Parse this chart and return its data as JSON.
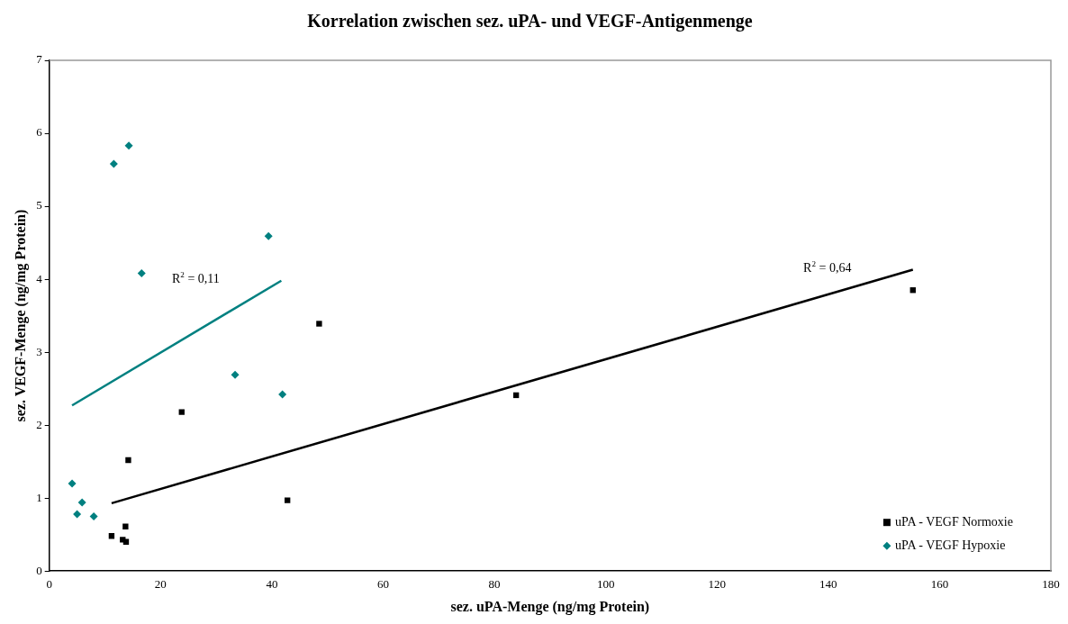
{
  "chart_data": {
    "type": "scatter",
    "title": "Korrelation zwischen sez. uPA- und VEGF-Antigenmenge",
    "xlabel": "sez. uPA-Menge (ng/mg Protein)",
    "ylabel": "sez. VEGF-Menge (ng/mg Protein)",
    "xlim": [
      0,
      180
    ],
    "xticks": [
      0,
      20,
      40,
      60,
      80,
      100,
      120,
      140,
      160,
      180
    ],
    "ylim": [
      0,
      7
    ],
    "yticks": [
      0,
      1,
      2,
      3,
      4,
      5,
      6,
      7
    ],
    "grid": false,
    "legend": "bottom right",
    "series": [
      {
        "name": "uPA - VEGF Normoxie",
        "color": "#000000",
        "marker": "square",
        "x": [
          11.2,
          13.2,
          13.8,
          13.7,
          14.2,
          23.8,
          42.8,
          48.5,
          83.9,
          155.2
        ],
        "values": [
          0.48,
          0.43,
          0.4,
          0.61,
          1.52,
          2.18,
          0.97,
          3.39,
          2.41,
          3.85
        ]
      },
      {
        "name": "uPA - VEGF Hypoxie",
        "color": "#008080",
        "marker": "diamond",
        "x": [
          4.1,
          5.0,
          5.9,
          8.0,
          11.6,
          14.3,
          16.6,
          33.4,
          39.4,
          41.9
        ],
        "values": [
          1.2,
          0.78,
          0.94,
          0.75,
          5.58,
          5.83,
          4.08,
          2.69,
          4.59,
          2.42
        ]
      },
      {
        "type": "line",
        "color": "#008080",
        "marker": "none",
        "x": [
          4.1,
          41.7
        ],
        "values": [
          2.27,
          3.98
        ]
      },
      {
        "type": "line",
        "color": "#000000",
        "marker": "none",
        "x": [
          11.2,
          155.2
        ],
        "values": [
          0.93,
          4.13
        ]
      }
    ],
    "annotations": [
      "R$^{2}$ = 0,11",
      "R$^{2}$ = 0,64"
    ]
  }
}
